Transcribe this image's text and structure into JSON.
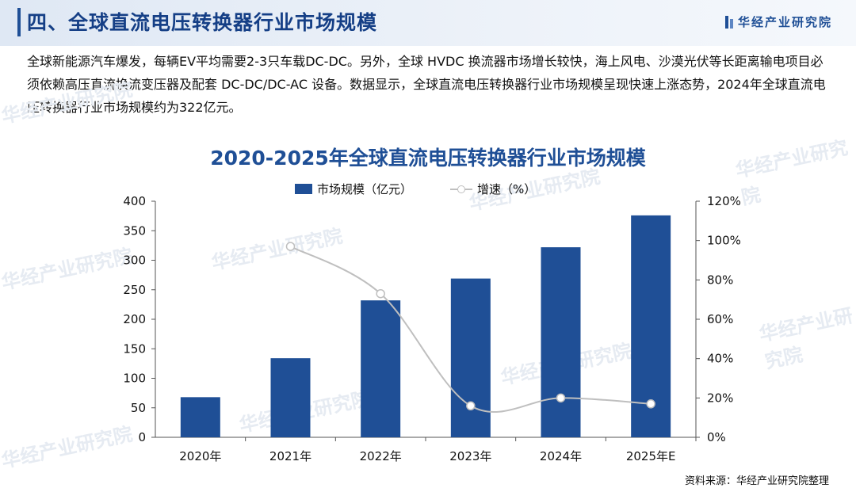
{
  "header": {
    "title": "四、全球直流电压转换器行业市场规模",
    "logo_text": "华经产业研究院"
  },
  "intro": "全球新能源汽车爆发，每辆EV平均需要2-3只车载DC-DC。另外，全球 HVDC 换流器市场增长较快，海上风电、沙漠光伏等长距离输电项目必须依赖高压直流换流变压器及配套 DC-DC/DC-AC 设备。数据显示，全球直流电压转换器行业市场规模呈现快速上涨态势，2024年全球直流电压转换器行业市场规模约为322亿元。",
  "watermark": "华经产业研究院",
  "source": "资料来源：华经产业研究院整理",
  "chart_data": {
    "type": "bar",
    "title": "2020-2025年全球直流电压转换器行业市场规模",
    "categories": [
      "2020年",
      "2021年",
      "2022年",
      "2023年",
      "2024年",
      "2025年E"
    ],
    "series": [
      {
        "name": "市场规模（亿元）",
        "type": "bar",
        "axis": "left",
        "color": "#1f4f96",
        "values": [
          68,
          134,
          232,
          269,
          322,
          376
        ]
      },
      {
        "name": "增速（%）",
        "type": "line",
        "axis": "right",
        "color": "#bfbfbf",
        "values": [
          null,
          97,
          73,
          16,
          20,
          17
        ]
      }
    ],
    "y_left": {
      "min": 0,
      "max": 400,
      "ticks": [
        "0",
        "50",
        "100",
        "150",
        "200",
        "250",
        "300",
        "350",
        "400"
      ]
    },
    "y_right": {
      "min": 0,
      "max": 120,
      "ticks": [
        "0%",
        "20%",
        "40%",
        "60%",
        "80%",
        "100%",
        "120%"
      ]
    },
    "grid": false,
    "legend": "top-center"
  }
}
